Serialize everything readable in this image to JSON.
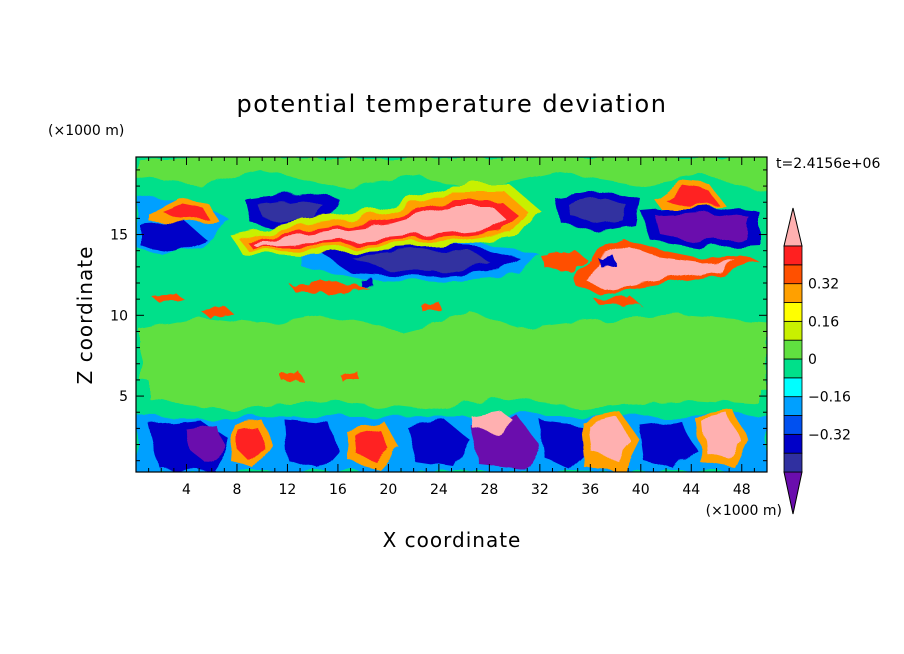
{
  "chart_data": {
    "type": "heatmap",
    "title": "potential temperature deviation",
    "xlabel": "X coordinate",
    "ylabel": "Z coordinate",
    "x_unit": "(×1000 m)",
    "y_unit": "(×1000 m)",
    "time_label": "t=2.4156e+06",
    "xlim": [
      0,
      50
    ],
    "ylim": [
      0.3,
      19.8
    ],
    "x_ticks": [
      4,
      8,
      12,
      16,
      20,
      24,
      28,
      32,
      36,
      40,
      44,
      48
    ],
    "x_tick_labels": [
      "4",
      "8",
      "12",
      "16",
      "20",
      "24",
      "28",
      "32",
      "36",
      "40",
      "44",
      "48"
    ],
    "y_ticks": [
      5,
      10,
      15
    ],
    "y_tick_labels": [
      "5",
      "10",
      "15"
    ],
    "colorbar": {
      "levels": [
        -0.48,
        -0.4,
        -0.32,
        -0.24,
        -0.16,
        -0.08,
        0,
        0.08,
        0.16,
        0.24,
        0.32,
        0.4,
        0.48
      ],
      "colors": [
        "#6a0dad",
        "#3030a0",
        "#0000c8",
        "#0050f0",
        "#00a0ff",
        "#00ffff",
        "#00e08a",
        "#60e040",
        "#c8f000",
        "#ffff00",
        "#ffa000",
        "#ff5000",
        "#ff2020",
        "#ffb0b0"
      ],
      "labels": [
        "0.32",
        "0.16",
        "0",
        "−0.16",
        "−0.32"
      ],
      "label_values": [
        0.32,
        0.16,
        0,
        -0.16,
        -0.32
      ],
      "extend": "both"
    },
    "colors": {
      "background_field": "#00e08a",
      "weak_positive": "#60e040"
    }
  }
}
